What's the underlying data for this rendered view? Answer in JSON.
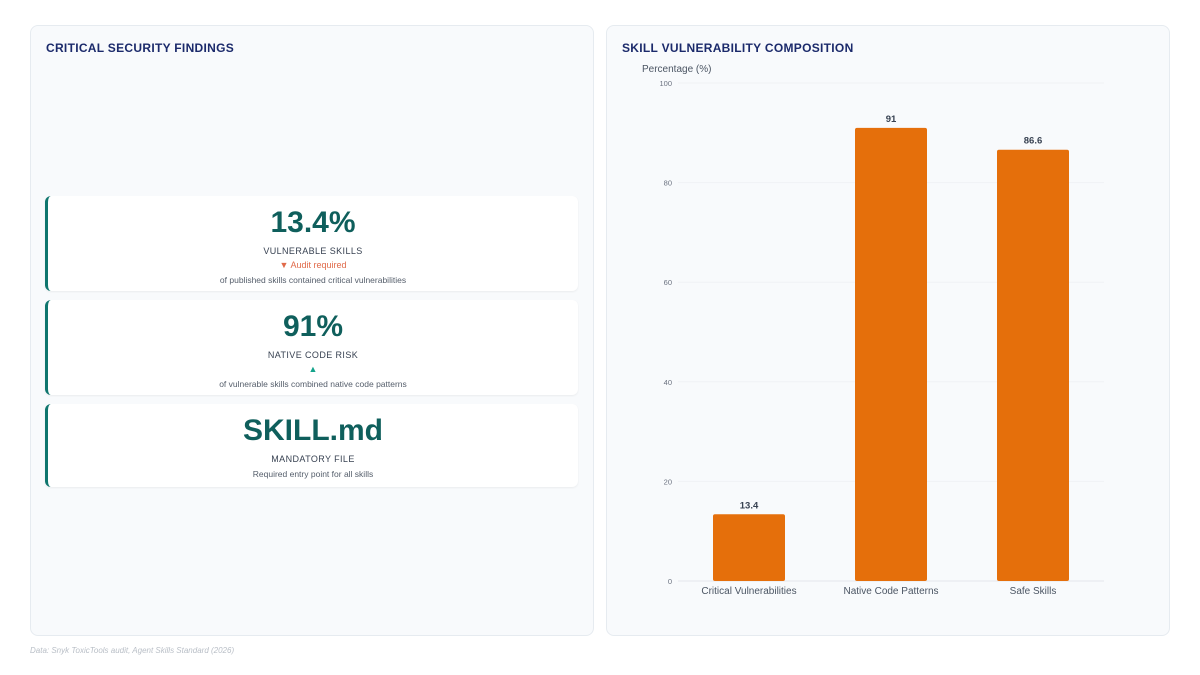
{
  "left_panel": {
    "title": "CRITICAL SECURITY FINDINGS",
    "cards": [
      {
        "value": "13.4%",
        "label": "VULNERABLE SKILLS",
        "trend_icon": "▼",
        "trend_text": "Audit required",
        "description": "of published skills contained critical vulnerabilities"
      },
      {
        "value": "91%",
        "label": "NATIVE CODE RISK",
        "trend_icon": "▲",
        "description": "of vulnerable skills combined native code patterns"
      },
      {
        "value": "SKILL.md",
        "label": "MANDATORY FILE",
        "description": "Required entry point for all skills"
      }
    ]
  },
  "right_panel": {
    "title": "SKILL VULNERABILITY COMPOSITION"
  },
  "chart_data": {
    "type": "bar",
    "ylabel": "Percentage (%)",
    "categories": [
      "Critical Vulnerabilities",
      "Native Code Patterns",
      "Safe Skills"
    ],
    "values": [
      13.4,
      91,
      86.6
    ],
    "data_labels": [
      "13.4",
      "91",
      "86.6"
    ],
    "ylim": [
      0,
      100
    ],
    "yticks": [
      0,
      20,
      40,
      60,
      80,
      100
    ],
    "bar_color": "#e56f0b",
    "grid": true
  },
  "footer": "Data: Snyk ToxicTools audit, Agent Skills Standard (2026)",
  "colors": {
    "accent_teal": "#0f766e",
    "title_navy": "#1b2a6b",
    "trend_down": "#e06a4a",
    "trend_up": "#14a38b"
  }
}
